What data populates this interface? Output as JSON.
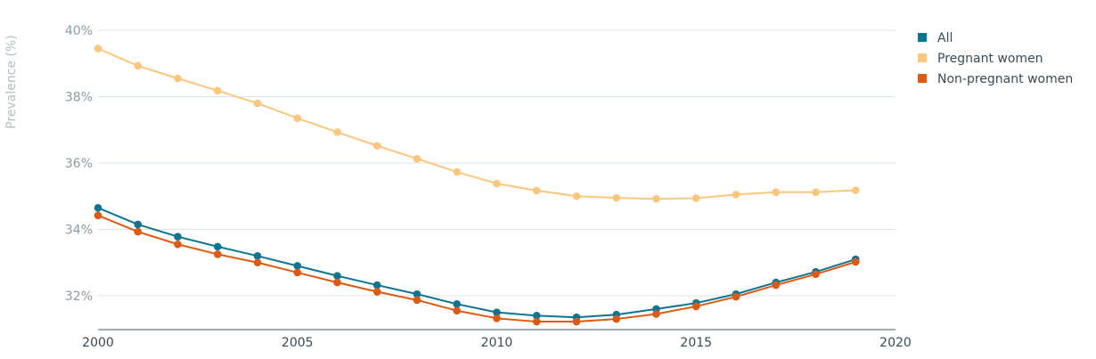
{
  "chart_data": {
    "type": "line",
    "title": "",
    "xlabel": "",
    "ylabel": "Prevalence (%)",
    "xlim": [
      2000,
      2020
    ],
    "ylim": [
      31,
      40
    ],
    "x_ticks": [
      {
        "value": 2000,
        "label": "2000"
      },
      {
        "value": 2005,
        "label": "2005"
      },
      {
        "value": 2010,
        "label": "2010"
      },
      {
        "value": 2015,
        "label": "2015"
      },
      {
        "value": 2020,
        "label": "2020"
      }
    ],
    "y_ticks": [
      {
        "value": 32,
        "label": "32%"
      },
      {
        "value": 34,
        "label": "34%"
      },
      {
        "value": 36,
        "label": "36%"
      },
      {
        "value": 38,
        "label": "38%"
      },
      {
        "value": 40,
        "label": "40%"
      }
    ],
    "grid": true,
    "legend_position": "top-right",
    "x": [
      2000,
      2001,
      2002,
      2003,
      2004,
      2005,
      2006,
      2007,
      2008,
      2009,
      2010,
      2011,
      2012,
      2013,
      2014,
      2015,
      2016,
      2017,
      2018,
      2019
    ],
    "series": [
      {
        "name": "All",
        "color": "#0e7490",
        "values": [
          34.65,
          34.15,
          33.78,
          33.48,
          33.2,
          32.9,
          32.6,
          32.32,
          32.05,
          31.75,
          31.5,
          31.4,
          31.35,
          31.43,
          31.6,
          31.78,
          32.05,
          32.4,
          32.72,
          33.1
        ]
      },
      {
        "name": "Pregnant women",
        "color": "#fbc67d",
        "values": [
          39.45,
          38.93,
          38.55,
          38.18,
          37.8,
          37.35,
          36.93,
          36.52,
          36.13,
          35.73,
          35.38,
          35.17,
          35.0,
          34.95,
          34.92,
          34.94,
          35.05,
          35.12,
          35.12,
          35.18
        ]
      },
      {
        "name": "Non-pregnant women",
        "color": "#dd5a12",
        "values": [
          34.42,
          33.93,
          33.55,
          33.25,
          33.0,
          32.7,
          32.4,
          32.12,
          31.87,
          31.55,
          31.32,
          31.22,
          31.22,
          31.3,
          31.45,
          31.68,
          31.97,
          32.32,
          32.65,
          33.02
        ]
      }
    ]
  }
}
